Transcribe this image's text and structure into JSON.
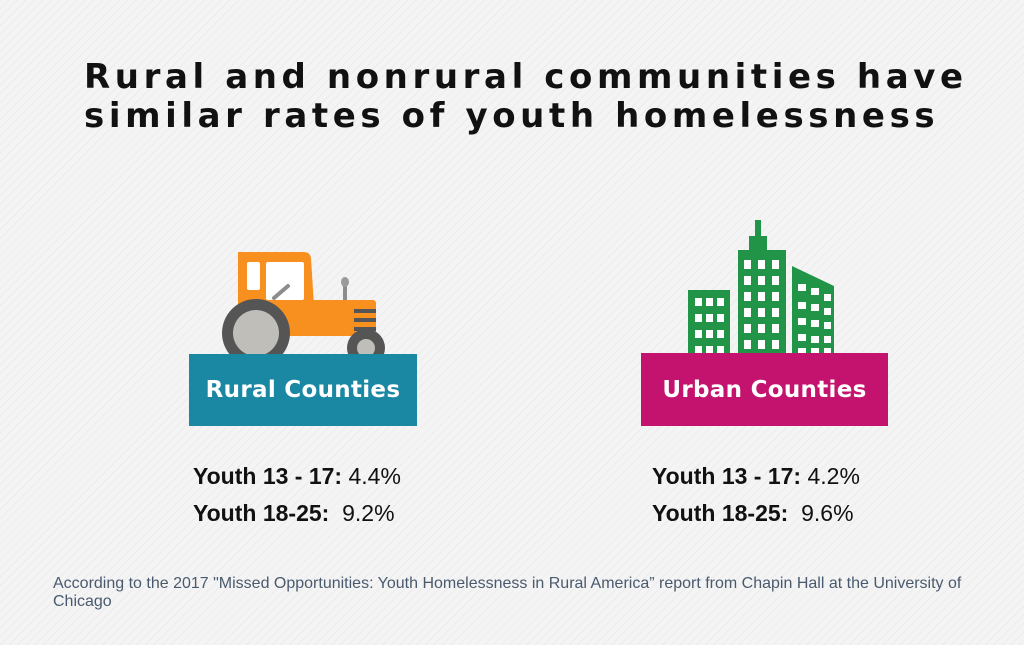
{
  "title": {
    "line1": "Rural and nonrural communities have",
    "line2": "similar rates of youth homelessness"
  },
  "rural": {
    "label": "Rural Counties",
    "color": "#1a87a3",
    "icon": "tractor-icon",
    "stats": [
      {
        "group": "Youth 13 - 17:",
        "value": " 4.4%"
      },
      {
        "group": "Youth 18-25:",
        "value": "  9.2%"
      }
    ]
  },
  "urban": {
    "label": "Urban Counties",
    "color": "#c4136e",
    "icon": "buildings-icon",
    "stats": [
      {
        "group": "Youth 13 - 17:",
        "value": " 4.2%"
      },
      {
        "group": "Youth 18-25:",
        "value": "  9.6%"
      }
    ]
  },
  "source": "According to the 2017 \"Missed Opportunities: Youth Homelessness in Rural  America” report from Chapin Hall at the University of Chicago"
}
